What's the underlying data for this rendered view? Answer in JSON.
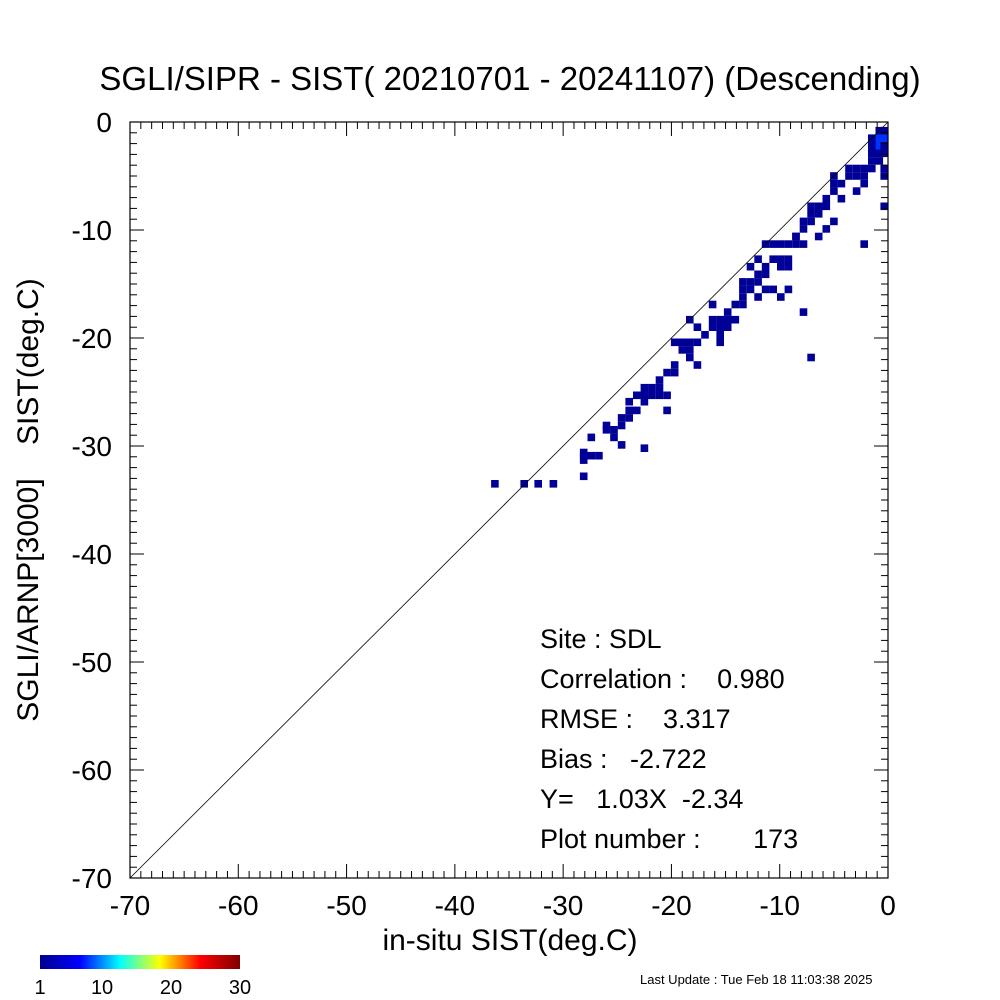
{
  "chart_data": {
    "type": "heatmap",
    "title": "SGLI/SIPR - SIST( 20210701 - 20241107) (Descending)",
    "xlabel": "in-situ SIST(deg.C)",
    "ylabel": "SGLI/ARNP[3000]    SIST(deg.C)",
    "xlim": [
      -70,
      0
    ],
    "ylim": [
      -70,
      0
    ],
    "x_ticks": [
      -70,
      -60,
      -50,
      -40,
      -30,
      -20,
      -10,
      0
    ],
    "y_ticks": [
      0,
      -10,
      -20,
      -30,
      -40,
      -50,
      -60,
      -70
    ],
    "x_tick_labels": [
      "-70",
      "-60",
      "-50",
      "-40",
      "-30",
      "-20",
      "-10",
      "0"
    ],
    "y_tick_labels": [
      "0",
      "-10",
      "-20",
      "-30",
      "-40",
      "-50",
      "-60",
      "-70"
    ],
    "minor_tick_step": 1,
    "grid": false,
    "one_to_one_line": true,
    "cell_size": 0.7,
    "cell_color": "#000096",
    "bright_color": "#0032ff",
    "points": [
      [
        -36.3,
        -33.5
      ],
      [
        -33.6,
        -33.5
      ],
      [
        -32.3,
        -33.5
      ],
      [
        -30.9,
        -33.5
      ],
      [
        -28.1,
        -32.8
      ],
      [
        -28.1,
        -31.3
      ],
      [
        -28.1,
        -30.9
      ],
      [
        -27.4,
        -30.9
      ],
      [
        -26.7,
        -30.9
      ],
      [
        -28.1,
        -30.6
      ],
      [
        -27.4,
        -29.2
      ],
      [
        -26.0,
        -28.5
      ],
      [
        -26.0,
        -28.1
      ],
      [
        -25.3,
        -28.5
      ],
      [
        -25.3,
        -29.2
      ],
      [
        -24.6,
        -28.1
      ],
      [
        -24.6,
        -27.4
      ],
      [
        -23.9,
        -27.4
      ],
      [
        -23.9,
        -26.7
      ],
      [
        -23.2,
        -26.7
      ],
      [
        -24.6,
        -29.9
      ],
      [
        -22.5,
        -30.2
      ],
      [
        -23.2,
        -25.3
      ],
      [
        -22.5,
        -25.3
      ],
      [
        -21.8,
        -25.3
      ],
      [
        -22.5,
        -24.6
      ],
      [
        -21.8,
        -24.6
      ],
      [
        -21.1,
        -24.6
      ],
      [
        -22.5,
        -25.9
      ],
      [
        -21.1,
        -25.3
      ],
      [
        -20.4,
        -25.3
      ],
      [
        -21.1,
        -23.9
      ],
      [
        -20.4,
        -23.2
      ],
      [
        -20.4,
        -26.7
      ],
      [
        -19.7,
        -23.2
      ],
      [
        -19.7,
        -22.5
      ],
      [
        -19.7,
        -20.4
      ],
      [
        -19.0,
        -20.4
      ],
      [
        -18.3,
        -20.4
      ],
      [
        -19.0,
        -21.1
      ],
      [
        -18.3,
        -21.8
      ],
      [
        -18.3,
        -21.1
      ],
      [
        -17.6,
        -20.4
      ],
      [
        -17.6,
        -22.5
      ],
      [
        -18.3,
        -18.3
      ],
      [
        -17.6,
        -19.0
      ],
      [
        -16.9,
        -19.7
      ],
      [
        -15.5,
        -20.4
      ],
      [
        -15.5,
        -19.7
      ],
      [
        -16.2,
        -19.0
      ],
      [
        -16.2,
        -18.3
      ],
      [
        -15.5,
        -18.3
      ],
      [
        -15.5,
        -19.0
      ],
      [
        -14.8,
        -18.3
      ],
      [
        -14.8,
        -19.0
      ],
      [
        -16.2,
        -16.9
      ],
      [
        -14.8,
        -17.6
      ],
      [
        -14.1,
        -18.3
      ],
      [
        -14.1,
        -16.9
      ],
      [
        -13.4,
        -16.9
      ],
      [
        -13.4,
        -16.2
      ],
      [
        -13.4,
        -15.5
      ],
      [
        -12.7,
        -15.5
      ],
      [
        -12.7,
        -14.8
      ],
      [
        -12.0,
        -14.8
      ],
      [
        -12.0,
        -14.1
      ],
      [
        -11.3,
        -14.1
      ],
      [
        -11.3,
        -13.4
      ],
      [
        -12.7,
        -13.4
      ],
      [
        -12.0,
        -12.7
      ],
      [
        -13.4,
        -14.8
      ],
      [
        -12.0,
        -16.2
      ],
      [
        -11.3,
        -15.5
      ],
      [
        -10.6,
        -15.5
      ],
      [
        -10.6,
        -12.7
      ],
      [
        -9.9,
        -12.7
      ],
      [
        -9.9,
        -13.4
      ],
      [
        -9.2,
        -12.7
      ],
      [
        -9.2,
        -13.4
      ],
      [
        -11.3,
        -11.3
      ],
      [
        -10.6,
        -11.3
      ],
      [
        -9.9,
        -11.3
      ],
      [
        -9.2,
        -11.3
      ],
      [
        -8.5,
        -11.3
      ],
      [
        -8.5,
        -10.6
      ],
      [
        -7.8,
        -11.3
      ],
      [
        -9.9,
        -16.2
      ],
      [
        -8.5,
        -10.6
      ],
      [
        -7.8,
        -9.9
      ],
      [
        -7.8,
        -9.2
      ],
      [
        -7.1,
        -9.2
      ],
      [
        -7.1,
        -8.5
      ],
      [
        -6.4,
        -8.5
      ],
      [
        -6.4,
        -7.8
      ],
      [
        -5.7,
        -7.8
      ],
      [
        -7.1,
        -7.8
      ],
      [
        -6.4,
        -10.6
      ],
      [
        -5.7,
        -9.9
      ],
      [
        -5.0,
        -9.2
      ],
      [
        -5.7,
        -7.1
      ],
      [
        -5.0,
        -6.4
      ],
      [
        -5.0,
        -5.7
      ],
      [
        -5.0,
        -5.0
      ],
      [
        -4.3,
        -5.7
      ],
      [
        -4.3,
        -7.1
      ],
      [
        -3.6,
        -4.3
      ],
      [
        -2.9,
        -4.3
      ],
      [
        -2.9,
        -5.0
      ],
      [
        -2.2,
        -5.0
      ],
      [
        -3.6,
        -5.0
      ],
      [
        -2.2,
        -4.3
      ],
      [
        -2.9,
        -6.4
      ],
      [
        -2.2,
        -5.7
      ],
      [
        -1.5,
        -3.6
      ],
      [
        -1.5,
        -2.9
      ],
      [
        -0.8,
        -2.9
      ],
      [
        -0.8,
        -2.2
      ],
      [
        -1.5,
        -2.2
      ],
      [
        -0.8,
        -1.5
      ],
      [
        -0.1,
        -2.2
      ],
      [
        -0.1,
        -1.5
      ],
      [
        -0.1,
        -0.8
      ],
      [
        -0.8,
        -0.8
      ],
      [
        -1.5,
        -1.5
      ],
      [
        -0.1,
        -2.9
      ],
      [
        -0.8,
        -3.6
      ],
      [
        -0.1,
        -4.3
      ],
      [
        -0.1,
        -5.0
      ],
      [
        -0.1,
        -7.8
      ],
      [
        -1.5,
        -4.3
      ],
      [
        -2.2,
        -11.3
      ],
      [
        -7.8,
        -17.6
      ],
      [
        -7.1,
        -21.8
      ],
      [
        -9.2,
        -15.5
      ],
      [
        -22.5,
        -25.3
      ],
      [
        -23.9,
        -25.9
      ]
    ],
    "bright_points": [
      [
        -0.8,
        -1.5
      ],
      [
        -0.1,
        -1.5
      ],
      [
        -0.8,
        -2.2
      ]
    ],
    "colorbar": {
      "min": 1,
      "max": 30,
      "tick_values": [
        1,
        10,
        20,
        30
      ],
      "tick_labels": [
        "1",
        "10",
        "20",
        "30"
      ],
      "colors": [
        "#00008f",
        "#0000ff",
        "#00ffff",
        "#ffff00",
        "#ff0000",
        "#800000"
      ]
    },
    "stats": {
      "site": "Site : SDL",
      "correlation": "Correlation :    0.980",
      "rmse": "RMSE :    3.317",
      "bias": "Bias :   -2.722",
      "equation": "Y=   1.03X  -2.34",
      "plot_number": "Plot number :       173"
    }
  },
  "footer": {
    "last_update": "Last Update : Tue Feb 18 11:03:38 2025"
  }
}
